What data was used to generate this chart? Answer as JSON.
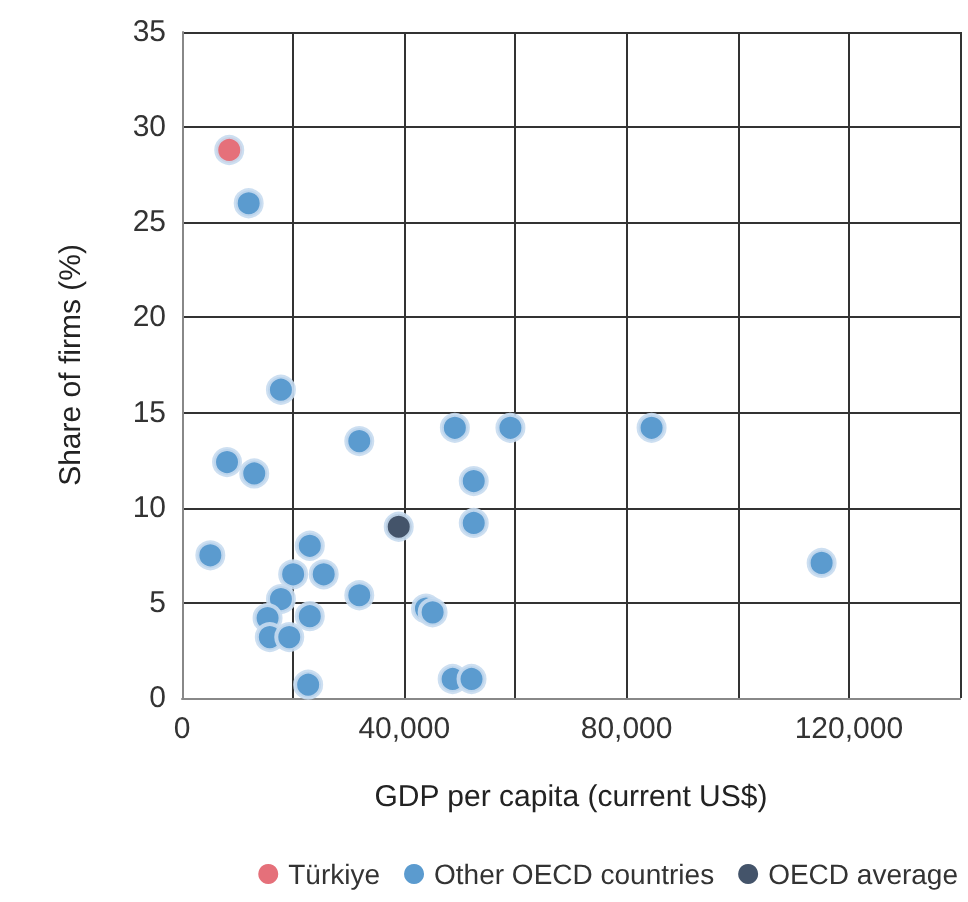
{
  "chart_data": {
    "type": "scatter",
    "xlabel": "GDP per capita (current US$)",
    "ylabel": "Share of firms (%)",
    "xlim": [
      0,
      140000
    ],
    "xticks": [
      0,
      {
        "value": 20000,
        "label": null
      },
      {
        "value": 40000,
        "label": "40,000"
      },
      {
        "value": 60000,
        "label": null
      },
      {
        "value": 80000,
        "label": "80,000"
      },
      {
        "value": 100000,
        "label": null
      },
      {
        "value": 120000,
        "label": "120,000"
      },
      {
        "value": 140000,
        "label": null
      }
    ],
    "ylim": [
      0,
      35
    ],
    "yticks": [
      0,
      5,
      10,
      15,
      20,
      25,
      30,
      35
    ],
    "grid": true,
    "legend": "bottom",
    "marker": "circle",
    "series": [
      {
        "name": "Türkiye",
        "color": "#e5707a",
        "x": [
          8500
        ],
        "values": [
          28.8
        ]
      },
      {
        "name": "Other OECD countries",
        "color": "#5b9bcf",
        "x": [
          12000,
          17800,
          8100,
          13000,
          5100,
          23000,
          20000,
          25500,
          17800,
          15400,
          15800,
          19300,
          23000,
          31900,
          31900,
          22700,
          43900,
          45100,
          49100,
          52500,
          52500,
          48700,
          52100,
          59100,
          84500,
          115100
        ],
        "values": [
          26.0,
          16.2,
          12.4,
          11.8,
          7.5,
          8.0,
          6.5,
          6.5,
          5.2,
          4.2,
          3.2,
          3.2,
          4.3,
          13.5,
          5.4,
          0.7,
          4.7,
          4.5,
          14.2,
          11.4,
          9.2,
          1.0,
          1.0,
          14.2,
          14.2,
          7.1
        ]
      },
      {
        "name": "OECD average",
        "color": "#44546a",
        "x": [
          39000
        ],
        "values": [
          9.0
        ]
      }
    ]
  }
}
